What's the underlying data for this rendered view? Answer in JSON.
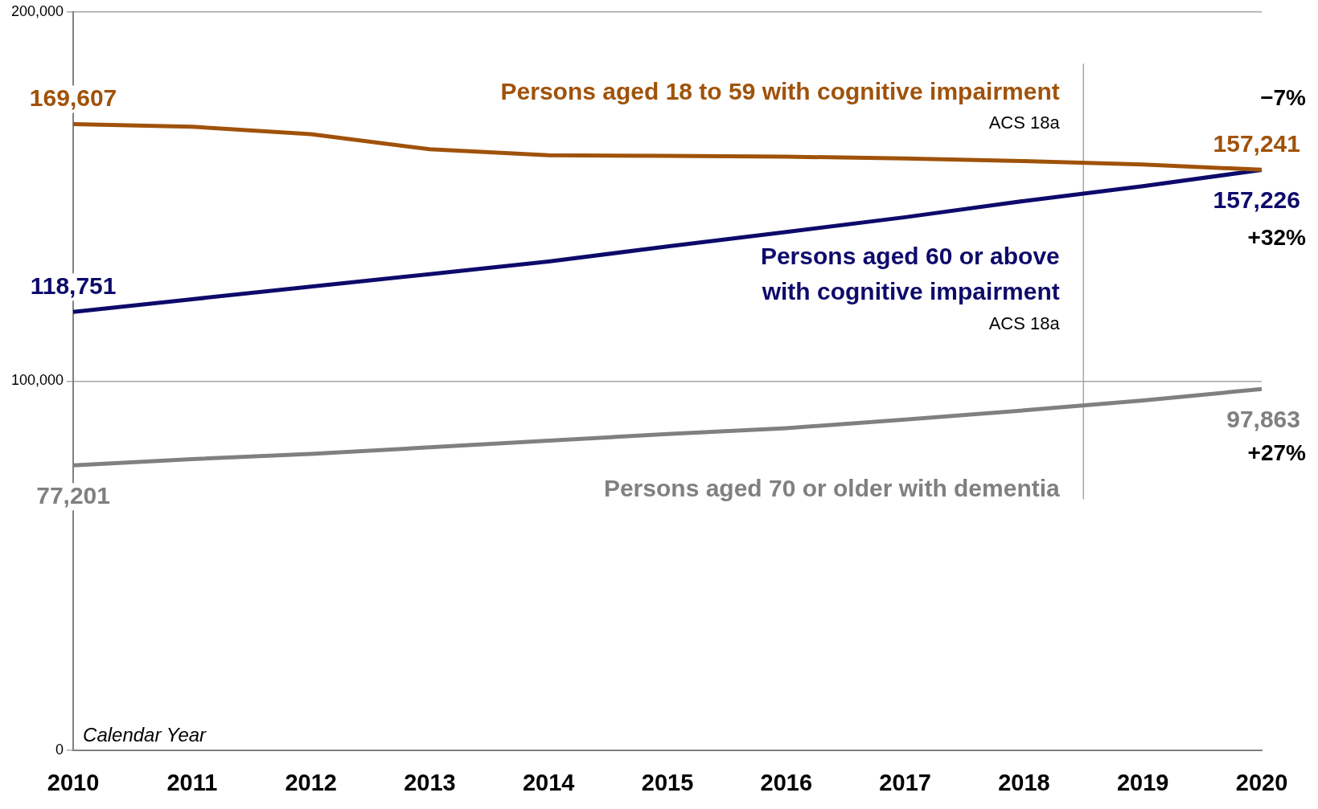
{
  "chart_data": {
    "type": "line",
    "xlabel": "Calendar Year",
    "categories": [
      "2010",
      "2011",
      "2012",
      "2013",
      "2014",
      "2015",
      "2016",
      "2017",
      "2018",
      "2019",
      "2020"
    ],
    "series": [
      {
        "name": "Persons aged 18 to 59 with cognitive impairment",
        "color": "#a0520a",
        "values": [
          169607,
          168900,
          166900,
          162800,
          161200,
          161000,
          160800,
          160300,
          159600,
          158700,
          157241
        ],
        "value_labels": [
          "169,607",
          null,
          null,
          null,
          null,
          null,
          null,
          null,
          null,
          null,
          "157,241"
        ]
      },
      {
        "name": "Persons aged 60 or above with cognitive impairment",
        "color": "#0d0a6b",
        "values": [
          118751,
          122200,
          125600,
          129000,
          132400,
          136500,
          140400,
          144400,
          148800,
          152800,
          157226
        ],
        "value_labels": [
          "118,751",
          null,
          null,
          null,
          null,
          null,
          null,
          null,
          null,
          null,
          "157,226"
        ]
      },
      {
        "name": "Persons aged 70 or older with dementia",
        "color": "#808080",
        "values": [
          77201,
          78900,
          80300,
          82100,
          83900,
          85700,
          87300,
          89600,
          92100,
          94800,
          97863
        ],
        "value_labels": [
          "77,201",
          null,
          null,
          null,
          null,
          null,
          null,
          null,
          null,
          null,
          "97,863"
        ]
      }
    ],
    "annotations": [
      "−7%",
      "+32%",
      "+27%",
      "ACS 18a",
      "ACS 18a"
    ],
    "ylim": [
      0,
      200000
    ],
    "yticks": [
      {
        "value": 0,
        "label": "0"
      },
      {
        "value": 100000,
        "label": "100,000"
      },
      {
        "value": 200000,
        "label": "200,000"
      }
    ],
    "grid": "y",
    "legend": false,
    "marker": "none",
    "line_style": "solid"
  }
}
